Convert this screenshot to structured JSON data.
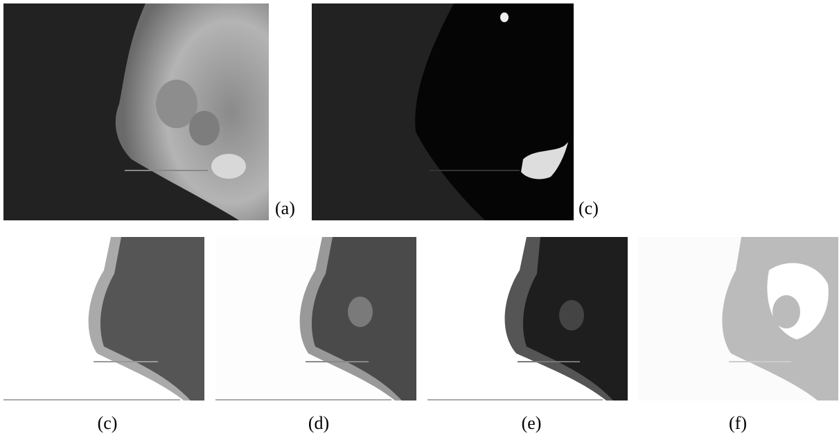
{
  "panels": [
    {
      "label": "(a)"
    },
    {
      "label": "(c)"
    },
    {
      "label": "(c)"
    },
    {
      "label": "(d)"
    },
    {
      "label": "(e)"
    },
    {
      "label": "(f)"
    }
  ]
}
